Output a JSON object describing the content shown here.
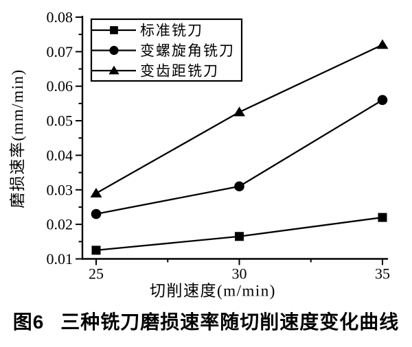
{
  "chart_data": {
    "type": "line",
    "title": "",
    "xlabel": "切削速度(m/min)",
    "ylabel": "磨损速率(mm/min)",
    "x": [
      25,
      30,
      35
    ],
    "xlim": [
      25,
      35
    ],
    "ylim": [
      0.01,
      0.08
    ],
    "x_major_ticks": [
      25,
      30,
      35
    ],
    "x_tick_labels": [
      "25",
      "30",
      "35"
    ],
    "x_minor_ticks": [
      27.5,
      32.5
    ],
    "y_major_ticks": [
      0.01,
      0.02,
      0.03,
      0.04,
      0.05,
      0.06,
      0.07,
      0.08
    ],
    "y_tick_labels": [
      "0.01",
      "0.02",
      "0.03",
      "0.04",
      "0.05",
      "0.06",
      "0.07",
      "0.08"
    ],
    "y_minor_ticks": [
      0.015,
      0.025,
      0.035,
      0.045,
      0.055,
      0.065,
      0.075
    ],
    "grid": false,
    "legend": {
      "position": "top-left-inside",
      "border": true
    },
    "colors": {
      "line": "#000000",
      "marker": "#000000",
      "text": "#000000",
      "background": "#ffffff"
    },
    "series": [
      {
        "name": "标准铣刀",
        "marker": "square",
        "values": [
          0.0125,
          0.0165,
          0.022
        ]
      },
      {
        "name": "变螺旋角铣刀",
        "marker": "circle",
        "values": [
          0.023,
          0.031,
          0.056
        ]
      },
      {
        "name": "变齿距铣刀",
        "marker": "triangle",
        "values": [
          0.029,
          0.0525,
          0.072
        ]
      }
    ]
  },
  "caption": {
    "figure_label": "图6",
    "title": "三种铣刀磨损速率随切削速度变化曲线"
  }
}
